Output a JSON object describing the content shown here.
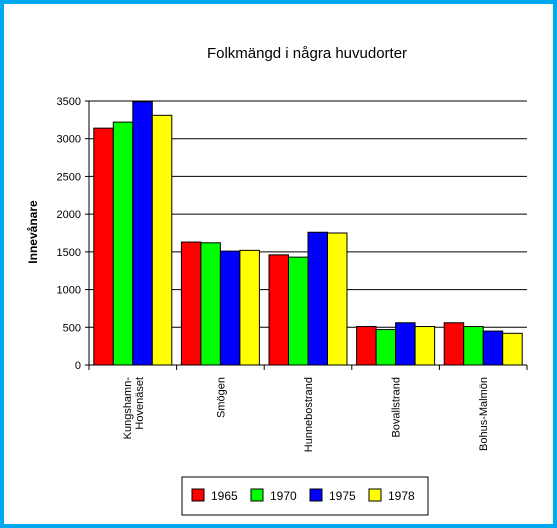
{
  "chart_data": {
    "type": "bar",
    "title": "Folkmängd i några huvudorter",
    "ylabel": "Innevånare",
    "xlabel": "",
    "ylim": [
      0,
      3500
    ],
    "ytick_step": 500,
    "grid": true,
    "legend_position": "bottom",
    "categories": [
      "Kungshamn-\nHovenäset",
      "Smögen",
      "Hunnebostrand",
      "Bovallstrand",
      "Bohus-Malmön"
    ],
    "series": [
      {
        "name": "1965",
        "color": "#ff0000",
        "values": [
          3140,
          1630,
          1460,
          510,
          560
        ]
      },
      {
        "name": "1970",
        "color": "#00ff00",
        "values": [
          3220,
          1620,
          1430,
          470,
          510
        ]
      },
      {
        "name": "1975",
        "color": "#0000ff",
        "values": [
          3490,
          1510,
          1760,
          560,
          450
        ]
      },
      {
        "name": "1978",
        "color": "#ffff00",
        "values": [
          3310,
          1520,
          1750,
          510,
          420
        ]
      }
    ]
  }
}
